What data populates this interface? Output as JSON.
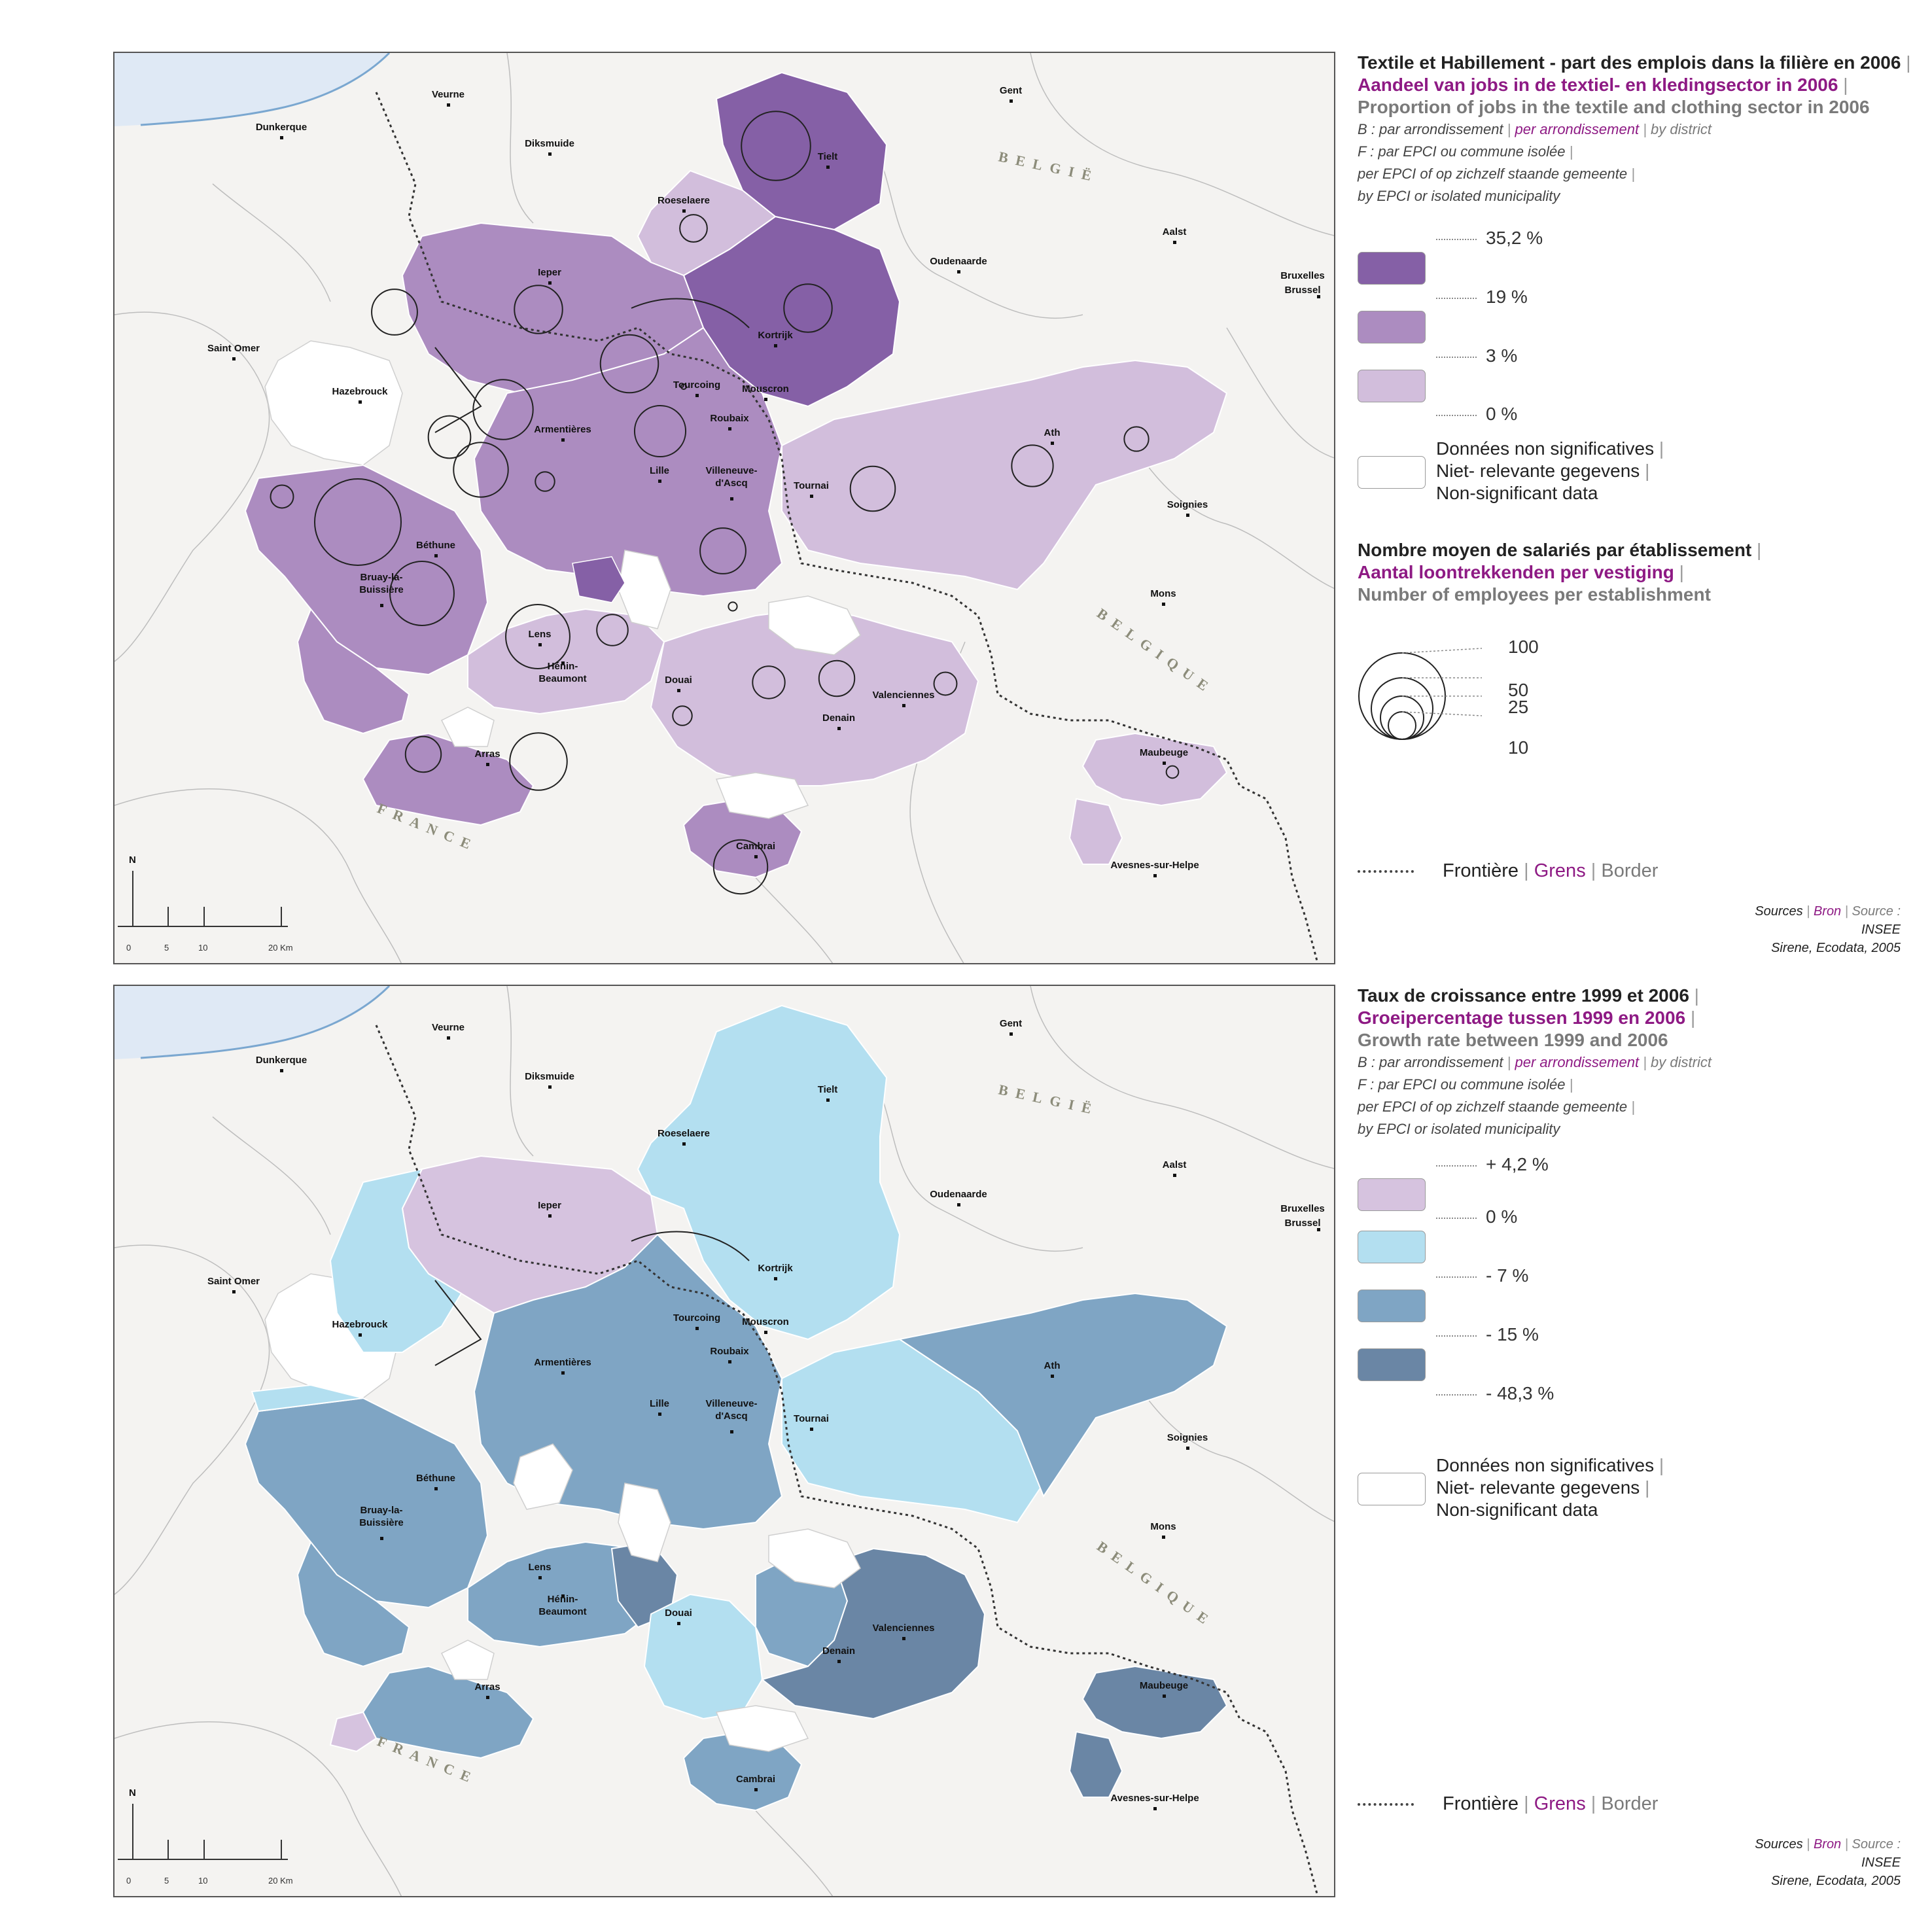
{
  "map1": {
    "legend": {
      "title_fr": "Textile et Habillement - part des emplois dans la filière en 2006",
      "title_nl": "Aandeel van jobs in de textiel- en kledingsector in 2006",
      "title_en": "Proportion of jobs in the textile and clothing sector in 2006",
      "b_fr": "B : par arrondissement",
      "b_nl": "per arrondissement",
      "b_en": "by district",
      "f_fr": "F : par EPCI ou commune isolée",
      "f_nl": "per EPCI of op zichzelf staande gemeente",
      "f_en": "by EPCI or isolated municipality",
      "thresholds": [
        "35,2 %",
        "19 %",
        "3 %",
        "0 %"
      ],
      "classes": [
        {
          "color": "#8560a6"
        },
        {
          "color": "#ac8cc0"
        },
        {
          "color": "#d2bedc"
        }
      ],
      "ns_fr": "Données non significatives",
      "ns_nl": "Niet- relevante gegevens",
      "ns_en": "Non-significant data",
      "circles_title_fr": "Nombre moyen de salariés par établissement",
      "circles_title_nl": "Aantal loontrekkenden per vestiging",
      "circles_title_en": "Number of employees per establishment",
      "circle_values": [
        "100",
        "50",
        "25",
        "10"
      ],
      "border_fr": "Frontière",
      "border_nl": "Grens",
      "border_en": "Border",
      "sources_fr": "Sources",
      "sources_nl": "Bron",
      "sources_en": "Source :",
      "sources_1": "INSEE",
      "sources_2": "Sirene, Ecodata, 2005"
    }
  },
  "map2": {
    "legend": {
      "title_fr": "Taux de croissance entre 1999 et 2006",
      "title_nl": "Groeipercentage tussen 1999 en 2006",
      "title_en": "Growth rate between 1999 and 2006",
      "b_fr": "B : par arrondissement",
      "b_nl": "per arrondissement",
      "b_en": "by district",
      "f_fr": "F : par EPCI ou commune isolée",
      "f_nl": "per EPCI of op zichzelf staande gemeente",
      "f_en": "by EPCI or isolated municipality",
      "thresholds": [
        "+ 4,2 %",
        "0 %",
        "- 7 %",
        "- 15 %",
        "- 48,3 %"
      ],
      "classes": [
        {
          "color": "#d6c3df"
        },
        {
          "color": "#b3dff0"
        },
        {
          "color": "#7fa5c4"
        },
        {
          "color": "#6a86a5"
        }
      ],
      "ns_fr": "Données non significatives",
      "ns_nl": "Niet- relevante gegevens",
      "ns_en": "Non-significant data",
      "border_fr": "Frontière",
      "border_nl": "Grens",
      "border_en": "Border",
      "sources_fr": "Sources",
      "sources_nl": "Bron",
      "sources_en": "Source :",
      "sources_1": "INSEE",
      "sources_2": "Sirene, Ecodata, 2005"
    }
  },
  "cities": [
    "Gent",
    "Veurne",
    "Dunkerque",
    "Diksmuide",
    "Tielt",
    "Roeselaere",
    "Aalst",
    "Ieper",
    "Oudenaarde",
    "Bruxelles",
    "Brussel",
    "Kortrijk",
    "Saint Omer",
    "Tourcoing",
    "Mouscron",
    "Hazebrouck",
    "Armentières",
    "Roubaix",
    "Ath",
    "Lille",
    "Villeneuve-",
    "d'Ascq",
    "Tournai",
    "Soignies",
    "Béthune",
    "Bruay-la-",
    "Buissière",
    "Mons",
    "Lens",
    "Hénin-",
    "Beaumont",
    "Douai",
    "Valenciennes",
    "Denain",
    "Arras",
    "Maubeuge",
    "Cambrai",
    "Avesnes-sur-Helpe"
  ],
  "countries": {
    "belgium_nl": "BELGIË",
    "belgium_fr": "BELGIQUE",
    "france": "FRANCE"
  },
  "scale": {
    "north": "N",
    "ticks": [
      "0",
      "5",
      "10",
      "20 Km"
    ]
  },
  "map1_circle_values": {
    "Tielt": 64,
    "Roeselaere": 10,
    "Ieper": 31,
    "Poperinge": 28,
    "Kortrijk": 31,
    "Menen": 45,
    "Armentieres": 48,
    "Bailleul-Nieppe": 24,
    "Tourcoing": 0,
    "Roubaix": 35,
    "Lille": 40,
    "Tournai": 27,
    "Ath": 23,
    "Lessines": 8,
    "Aire": 7,
    "Bethune-Ouest": 100,
    "Bethune": 5,
    "Seclin": 28,
    "Bruay": 55,
    "Lens": 55,
    "Carvin": 13,
    "Pecq": 1,
    "Douai": 5,
    "Denain": 14,
    "Valenciennes": 17,
    "Onnaing": 7,
    "Doullens": 17,
    "Arras": 44,
    "Cambrai": 39,
    "Maubeuge": 2
  }
}
